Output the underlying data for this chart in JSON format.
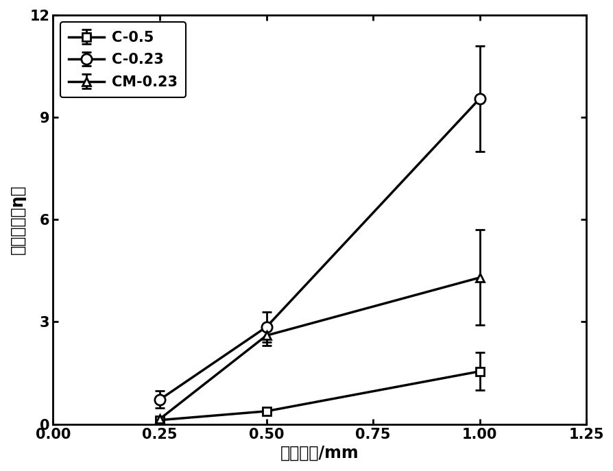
{
  "series": [
    {
      "label": "C-0.5",
      "x": [
        0.25,
        0.5,
        1.0
      ],
      "y": [
        0.12,
        0.38,
        1.55
      ],
      "yerr": [
        0.05,
        0.05,
        0.55
      ],
      "marker": "s",
      "color": "#000000",
      "markersize": 9,
      "markerfacecolor": "white"
    },
    {
      "label": "C-0.23",
      "x": [
        0.25,
        0.5,
        1.0
      ],
      "y": [
        0.72,
        2.85,
        9.55
      ],
      "yerr": [
        0.25,
        0.45,
        1.55
      ],
      "marker": "o",
      "color": "#000000",
      "markersize": 11,
      "markerfacecolor": "white"
    },
    {
      "label": "CM-0.23",
      "x": [
        0.25,
        0.5,
        1.0
      ],
      "y": [
        0.15,
        2.6,
        4.3
      ],
      "yerr": [
        0.05,
        0.3,
        1.4
      ],
      "marker": "^",
      "color": "#000000",
      "markersize": 9,
      "markerfacecolor": "white"
    }
  ],
  "xlabel": "裂缝宽度/mm",
  "ylabel": "再膨胀率（η）",
  "xlim": [
    0.0,
    1.25
  ],
  "ylim": [
    0,
    12
  ],
  "xticks": [
    0.0,
    0.25,
    0.5,
    0.75,
    1.0,
    1.25
  ],
  "yticks": [
    0,
    3,
    6,
    9,
    12
  ],
  "linewidth": 2.5,
  "legend_fontsize": 15,
  "axis_label_fontsize": 17,
  "tick_fontsize": 15,
  "background_color": "#ffffff"
}
